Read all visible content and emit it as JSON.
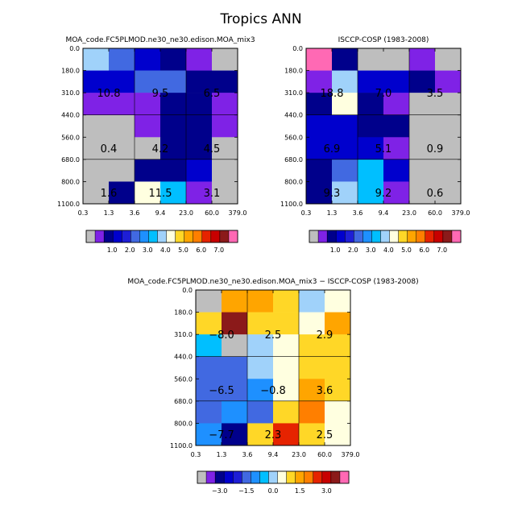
{
  "title": "Tropics ANN",
  "chart_data": {
    "type": "heatmap",
    "xticks": [
      "0.3",
      "1.3",
      "3.6",
      "9.4",
      "23.0",
      "60.0",
      "379.0"
    ],
    "yticks": [
      "0.0",
      "180.0",
      "310.0",
      "440.0",
      "560.0",
      "680.0",
      "800.0",
      "1100.0"
    ],
    "main_palette": [
      "#bebebe",
      "#7f22e6",
      "#00008b",
      "#0000cd",
      "#1e1ed6",
      "#4169e1",
      "#1e90ff",
      "#00bfff",
      "#a0d2fa",
      "#ffffe0",
      "#ffd727",
      "#ffa500",
      "#ff7f00",
      "#e62300",
      "#c80000",
      "#8b1a1a",
      "#ff69b4"
    ],
    "diff_palette": [
      "#bebebe",
      "#7f22e6",
      "#00008b",
      "#0000cd",
      "#1e1ed6",
      "#4169e1",
      "#1e90ff",
      "#00bfff",
      "#a0d2fa",
      "#ffffe0",
      "#ffd727",
      "#ffa500",
      "#ff7f00",
      "#e62300",
      "#c80000",
      "#8b1a1a",
      "#ff69b4"
    ],
    "panels": [
      {
        "title": "MOA_code.FC5PLMOD.ne30_ne30.edison.MOA_mix3",
        "cells": [
          [
            8,
            5,
            3,
            2,
            1,
            0
          ],
          [
            3,
            3,
            5,
            5,
            2,
            2
          ],
          [
            1,
            1,
            1,
            2,
            2,
            1
          ],
          [
            0,
            0,
            1,
            2,
            2,
            1
          ],
          [
            0,
            0,
            0,
            2,
            2,
            0
          ],
          [
            0,
            0,
            2,
            2,
            3,
            0
          ],
          [
            0,
            2,
            9,
            7,
            1,
            0
          ]
        ],
        "totals": [
          {
            "col": 0.5,
            "row": 1.5,
            "text": "10.8"
          },
          {
            "col": 2.5,
            "row": 1.5,
            "text": "9.5"
          },
          {
            "col": 4.5,
            "row": 1.5,
            "text": "6.5"
          },
          {
            "col": 0.5,
            "row": 4.0,
            "text": "0.4"
          },
          {
            "col": 2.5,
            "row": 4.0,
            "text": "4.2"
          },
          {
            "col": 4.5,
            "row": 4.0,
            "text": "4.5"
          },
          {
            "col": 0.5,
            "row": 6.0,
            "text": "1.6"
          },
          {
            "col": 2.5,
            "row": 6.0,
            "text": "11.5"
          },
          {
            "col": 4.5,
            "row": 6.0,
            "text": "3.1"
          }
        ],
        "colorbar_labels": [
          "1.0",
          "2.0",
          "3.0",
          "4.0",
          "5.0",
          "6.0",
          "7.0"
        ]
      },
      {
        "title": "ISCCP-COSP (1983-2008)",
        "cells": [
          [
            16,
            2,
            0,
            0,
            1,
            0
          ],
          [
            1,
            8,
            3,
            3,
            2,
            1
          ],
          [
            2,
            9,
            2,
            1,
            0,
            0
          ],
          [
            3,
            3,
            2,
            2,
            0,
            0
          ],
          [
            3,
            3,
            3,
            1,
            0,
            0
          ],
          [
            2,
            5,
            7,
            3,
            0,
            0
          ],
          [
            2,
            8,
            7,
            1,
            0,
            0
          ]
        ],
        "totals": [
          {
            "col": 0.5,
            "row": 1.5,
            "text": "18.8"
          },
          {
            "col": 2.5,
            "row": 1.5,
            "text": "7.0"
          },
          {
            "col": 4.5,
            "row": 1.5,
            "text": "3.5"
          },
          {
            "col": 0.5,
            "row": 4.0,
            "text": "6.9"
          },
          {
            "col": 2.5,
            "row": 4.0,
            "text": "5.1"
          },
          {
            "col": 4.5,
            "row": 4.0,
            "text": "0.9"
          },
          {
            "col": 0.5,
            "row": 6.0,
            "text": "9.3"
          },
          {
            "col": 2.5,
            "row": 6.0,
            "text": "9.2"
          },
          {
            "col": 4.5,
            "row": 6.0,
            "text": "0.6"
          }
        ],
        "colorbar_labels": [
          "1.0",
          "2.0",
          "3.0",
          "4.0",
          "5.0",
          "6.0",
          "7.0"
        ]
      },
      {
        "title": "MOA_code.FC5PLMOD.ne30_ne30.edison.MOA_mix3 − ISCCP-COSP (1983-2008)",
        "cells": [
          [
            0,
            11,
            11,
            10,
            8,
            9
          ],
          [
            10,
            15,
            10,
            10,
            9,
            11
          ],
          [
            7,
            0,
            8,
            9,
            10,
            10
          ],
          [
            5,
            5,
            8,
            9,
            10,
            10
          ],
          [
            5,
            5,
            6,
            9,
            11,
            10
          ],
          [
            5,
            6,
            5,
            10,
            12,
            9
          ],
          [
            6,
            2,
            10,
            13,
            10,
            9
          ]
        ],
        "totals": [
          {
            "col": 0.5,
            "row": 1.5,
            "text": "−8.0"
          },
          {
            "col": 2.5,
            "row": 1.5,
            "text": "2.5"
          },
          {
            "col": 4.5,
            "row": 1.5,
            "text": "2.9"
          },
          {
            "col": 0.5,
            "row": 4.0,
            "text": "−6.5"
          },
          {
            "col": 2.5,
            "row": 4.0,
            "text": "−0.8"
          },
          {
            "col": 4.5,
            "row": 4.0,
            "text": "3.6"
          },
          {
            "col": 0.5,
            "row": 6.0,
            "text": "−7.7"
          },
          {
            "col": 2.5,
            "row": 6.0,
            "text": "2.3"
          },
          {
            "col": 4.5,
            "row": 6.0,
            "text": "2.5"
          }
        ],
        "colorbar_labels": [
          "−3.0",
          "−1.5",
          "0.0",
          "1.5",
          "3.0"
        ]
      }
    ]
  }
}
